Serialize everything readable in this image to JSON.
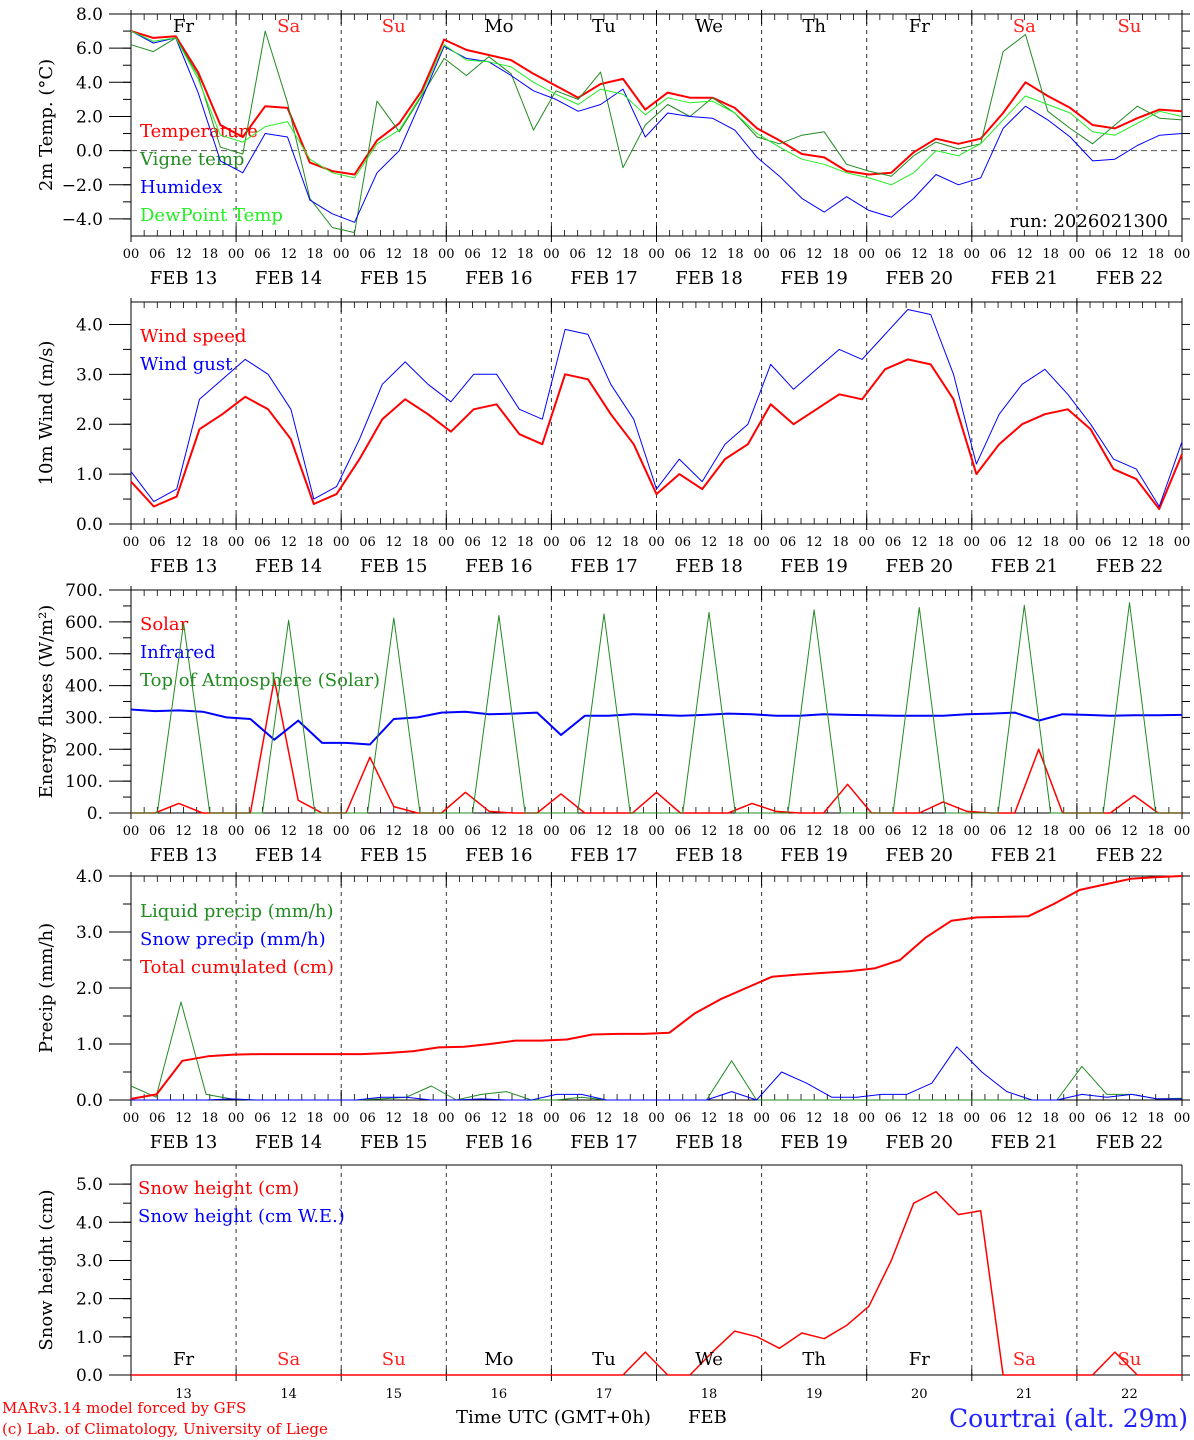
{
  "colors": {
    "red": "#ff0000",
    "darkgreen": "#228b22",
    "blue": "#0000ff",
    "lightgreen": "#22ee22",
    "black": "#000000",
    "weekend": "#ff2020"
  },
  "days": [
    {
      "abbr": "Fr",
      "weekend": false
    },
    {
      "abbr": "Sa",
      "weekend": true
    },
    {
      "abbr": "Su",
      "weekend": true
    },
    {
      "abbr": "Mo",
      "weekend": false
    },
    {
      "abbr": "Tu",
      "weekend": false
    },
    {
      "abbr": "We",
      "weekend": false
    },
    {
      "abbr": "Th",
      "weekend": false
    },
    {
      "abbr": "Fr",
      "weekend": false
    },
    {
      "abbr": "Sa",
      "weekend": true
    },
    {
      "abbr": "Su",
      "weekend": true
    }
  ],
  "date_labels": [
    "FEB 13",
    "FEB 14",
    "FEB 15",
    "FEB 16",
    "FEB 17",
    "FEB 18",
    "FEB 19",
    "FEB 20",
    "FEB 21",
    "FEB 22"
  ],
  "hour_labels": [
    "00",
    "06",
    "12",
    "18"
  ],
  "final_hour_label": "00",
  "bottom_day_numbers": [
    "13",
    "14",
    "15",
    "16",
    "17",
    "18",
    "19",
    "20",
    "21",
    "22"
  ],
  "footer": {
    "model": "MARv3.14 model forced by GFS",
    "credit": "(c) Lab. of Climatology, University of Liege",
    "time_axis": "Time UTC (GMT+0h)",
    "month": "FEB",
    "station": "Courtrai (alt. 29m)"
  },
  "chart_data": [
    {
      "type": "line",
      "id": "temp",
      "ylabel": "2m Temp. (°C)",
      "ylim": [
        -5,
        8
      ],
      "yticks": [
        -4,
        -2,
        0,
        2,
        4,
        6,
        8
      ],
      "ytick_labels": [
        "−4.0",
        "−2.0",
        "0.0",
        "2.0",
        "4.0",
        "6.0",
        "8.0"
      ],
      "zero_line": true,
      "annotation": "run: 2026021300",
      "show_days": true,
      "x_hours_step": 6,
      "series": [
        {
          "name": "Temperature",
          "color": "#ff0000",
          "width": 2,
          "values": [
            7.0,
            6.6,
            6.7,
            4.6,
            1.5,
            0.8,
            2.6,
            2.5,
            -0.7,
            -1.2,
            -1.4,
            0.6,
            1.6,
            3.5,
            6.5,
            5.9,
            5.6,
            5.3,
            4.5,
            3.8,
            3.1,
            3.9,
            4.2,
            2.4,
            3.4,
            3.1,
            3.1,
            2.5,
            1.3,
            0.6,
            -0.2,
            -0.4,
            -1.2,
            -1.4,
            -1.3,
            -0.1,
            0.7,
            0.4,
            0.7,
            2.2,
            4.0,
            3.2,
            2.5,
            1.5,
            1.3,
            1.9,
            2.4,
            2.3
          ]
        },
        {
          "name": "Vigne temp",
          "color": "#228b22",
          "width": 1,
          "values": [
            6.2,
            5.8,
            6.6,
            4.4,
            0.2,
            -0.2,
            7.0,
            2.8,
            -2.8,
            -4.5,
            -4.8,
            2.9,
            1.1,
            3.2,
            5.4,
            4.4,
            5.5,
            4.5,
            1.2,
            3.5,
            3.0,
            4.6,
            -1.0,
            1.5,
            2.7,
            2.0,
            3.1,
            2.2,
            0.8,
            0.4,
            0.9,
            1.1,
            -0.8,
            -1.2,
            -1.5,
            -0.3,
            0.5,
            0.1,
            0.4,
            5.8,
            6.8,
            2.3,
            1.3,
            0.4,
            1.5,
            2.6,
            1.9,
            1.8
          ]
        },
        {
          "name": "Humidex",
          "color": "#0000ff",
          "width": 1,
          "values": [
            7.0,
            6.3,
            6.6,
            3.4,
            -0.6,
            -1.3,
            1.0,
            0.8,
            -2.9,
            -3.7,
            -4.2,
            -1.3,
            0.0,
            3.0,
            6.1,
            5.4,
            5.2,
            4.4,
            3.5,
            3.0,
            2.3,
            2.7,
            3.6,
            0.8,
            2.2,
            2.0,
            1.9,
            1.2,
            -0.4,
            -1.5,
            -2.8,
            -3.6,
            -2.7,
            -3.5,
            -3.9,
            -2.8,
            -1.4,
            -2.0,
            -1.6,
            1.3,
            2.6,
            1.8,
            0.8,
            -0.6,
            -0.5,
            0.3,
            0.9,
            1.0
          ]
        },
        {
          "name": "DewPoint Temp",
          "color": "#22ee22",
          "width": 1,
          "values": [
            7.0,
            6.4,
            6.6,
            4.2,
            0.9,
            0.5,
            1.4,
            1.7,
            -0.5,
            -1.3,
            -1.6,
            0.4,
            1.2,
            3.3,
            6.2,
            5.3,
            5.2,
            4.9,
            4.0,
            3.3,
            2.7,
            3.6,
            3.3,
            2.1,
            3.1,
            2.8,
            2.9,
            2.2,
            1.0,
            0.2,
            -0.5,
            -0.8,
            -1.3,
            -1.6,
            -2.0,
            -1.3,
            0.0,
            -0.3,
            0.4,
            1.8,
            3.2,
            2.7,
            2.2,
            1.1,
            0.9,
            1.6,
            2.3,
            2.0
          ]
        }
      ]
    },
    {
      "type": "line",
      "id": "wind",
      "ylabel": "10m Wind (m/s)",
      "ylim": [
        0,
        4.45
      ],
      "yticks": [
        0,
        1,
        2,
        3,
        4
      ],
      "ytick_labels": [
        "0.0",
        "1.0",
        "2.0",
        "3.0",
        "4.0"
      ],
      "series": [
        {
          "name": "Wind speed",
          "color": "#ff0000",
          "width": 2,
          "values": [
            0.85,
            0.35,
            0.55,
            1.9,
            2.2,
            2.55,
            2.3,
            1.7,
            0.4,
            0.6,
            1.3,
            2.1,
            2.5,
            2.2,
            1.85,
            2.3,
            2.4,
            1.8,
            1.6,
            3.0,
            2.9,
            2.2,
            1.6,
            0.6,
            1.0,
            0.7,
            1.3,
            1.6,
            2.4,
            2.0,
            2.3,
            2.6,
            2.5,
            3.1,
            3.3,
            3.2,
            2.5,
            1.0,
            1.6,
            2.0,
            2.2,
            2.3,
            1.9,
            1.1,
            0.9,
            0.3,
            1.4
          ]
        },
        {
          "name": "Wind gust",
          "color": "#0000ff",
          "width": 1,
          "values": [
            1.05,
            0.45,
            0.7,
            2.5,
            2.9,
            3.3,
            3.0,
            2.3,
            0.5,
            0.75,
            1.7,
            2.8,
            3.25,
            2.8,
            2.45,
            3.0,
            3.0,
            2.3,
            2.1,
            3.9,
            3.8,
            2.8,
            2.1,
            0.7,
            1.3,
            0.85,
            1.6,
            2.0,
            3.2,
            2.7,
            3.1,
            3.5,
            3.3,
            3.8,
            4.3,
            4.2,
            3.0,
            1.2,
            2.2,
            2.8,
            3.1,
            2.6,
            2.0,
            1.3,
            1.1,
            0.35,
            1.65
          ]
        }
      ]
    },
    {
      "type": "line",
      "id": "energy",
      "ylabel": "Energy fluxes (W/m²)",
      "ylim": [
        0,
        700
      ],
      "yticks": [
        0,
        100,
        200,
        300,
        400,
        500,
        600,
        700
      ],
      "ytick_labels": [
        "0.",
        "100.",
        "200.",
        "300.",
        "400.",
        "500.",
        "600.",
        "700."
      ],
      "series": [
        {
          "name": "Solar",
          "color": "#ff0000",
          "width": 1.5,
          "values": [
            0,
            0,
            30,
            0,
            0,
            0,
            420,
            40,
            0,
            0,
            175,
            20,
            0,
            0,
            65,
            5,
            0,
            0,
            60,
            0,
            0,
            0,
            65,
            0,
            0,
            0,
            30,
            5,
            0,
            0,
            90,
            0,
            0,
            0,
            35,
            5,
            0,
            0,
            200,
            0,
            0,
            0,
            55,
            0,
            0
          ]
        },
        {
          "name": "Infrared",
          "color": "#0000ff",
          "width": 2,
          "values": [
            325,
            320,
            322,
            318,
            300,
            295,
            230,
            290,
            220,
            220,
            215,
            295,
            300,
            315,
            318,
            310,
            312,
            315,
            245,
            305,
            305,
            310,
            308,
            305,
            308,
            312,
            310,
            305,
            305,
            310,
            308,
            307,
            305,
            305,
            305,
            310,
            312,
            315,
            290,
            310,
            308,
            305,
            307,
            307,
            308
          ]
        },
        {
          "name": "Top of Atmosphere (Solar)",
          "color": "#228b22",
          "width": 1,
          "values": [
            0,
            0,
            595,
            0,
            0,
            0,
            605,
            0,
            0,
            0,
            612,
            0,
            0,
            0,
            620,
            0,
            0,
            0,
            625,
            0,
            0,
            0,
            630,
            0,
            0,
            0,
            638,
            0,
            0,
            0,
            645,
            0,
            0,
            0,
            652,
            0,
            0,
            0,
            660,
            0,
            0
          ]
        }
      ]
    },
    {
      "type": "line",
      "id": "precip",
      "ylabel": "Precip (mm/h)",
      "ylim": [
        0,
        4
      ],
      "yticks": [
        0,
        1,
        2,
        3,
        4
      ],
      "ytick_labels": [
        "0.0",
        "1.0",
        "2.0",
        "3.0",
        "4.0"
      ],
      "series": [
        {
          "name": "Liquid precip (mm/h)",
          "color": "#228b22",
          "width": 1,
          "values": [
            0.25,
            0.05,
            1.75,
            0.1,
            0.02,
            0.0,
            0.0,
            0.0,
            0.0,
            0.0,
            0.02,
            0.05,
            0.25,
            0.0,
            0.1,
            0.15,
            0.0,
            0.0,
            0.05,
            0.0,
            0.0,
            0.0,
            0.0,
            0.0,
            0.7,
            0.0,
            0.0,
            0.0,
            0.0,
            0.0,
            0.0,
            0.0,
            0.0,
            0.0,
            0.0,
            0.0,
            0.0,
            0.0,
            0.6,
            0.1,
            0.1,
            0.02,
            0.03
          ]
        },
        {
          "name": "Snow precip (mm/h)",
          "color": "#0000ff",
          "width": 1,
          "values": [
            0.0,
            0.0,
            0.0,
            0.0,
            0.02,
            0.0,
            0.0,
            0.0,
            0.0,
            0.0,
            0.05,
            0.05,
            0.0,
            0.0,
            0.02,
            0.0,
            0.0,
            0.1,
            0.1,
            0.0,
            0.0,
            0.0,
            0.0,
            0.0,
            0.15,
            0.0,
            0.5,
            0.3,
            0.05,
            0.05,
            0.1,
            0.1,
            0.3,
            0.95,
            0.5,
            0.15,
            0.0,
            0.0,
            0.1,
            0.05,
            0.1,
            0.02,
            0.02
          ]
        },
        {
          "name": "Total cumulated (cm)",
          "color": "#ff0000",
          "width": 2,
          "values": [
            0.02,
            0.1,
            0.7,
            0.78,
            0.81,
            0.82,
            0.82,
            0.82,
            0.82,
            0.82,
            0.84,
            0.87,
            0.94,
            0.95,
            1.0,
            1.06,
            1.06,
            1.08,
            1.17,
            1.18,
            1.18,
            1.2,
            1.55,
            1.8,
            2.0,
            2.2,
            2.24,
            2.27,
            2.3,
            2.35,
            2.5,
            2.9,
            3.2,
            3.26,
            3.27,
            3.28,
            3.5,
            3.75,
            3.85,
            3.95,
            3.98,
            4.0
          ]
        }
      ]
    },
    {
      "type": "line",
      "id": "snow",
      "ylabel": "Snow height (cm)",
      "ylim": [
        0,
        5.5
      ],
      "yticks": [
        0,
        1,
        2,
        3,
        4,
        5
      ],
      "ytick_labels": [
        "0.0",
        "1.0",
        "2.0",
        "3.0",
        "4.0",
        "5.0"
      ],
      "show_days_bottom": true,
      "series": [
        {
          "name": "Snow height (cm)",
          "color": "#ff0000",
          "width": 1.5,
          "values": [
            0,
            0,
            0,
            0,
            0,
            0,
            0,
            0,
            0,
            0,
            0,
            0,
            0,
            0,
            0,
            0,
            0,
            0,
            0,
            0,
            0,
            0,
            0,
            0.6,
            0,
            0,
            0.6,
            1.15,
            1.0,
            0.7,
            1.1,
            0.95,
            1.3,
            1.8,
            3.0,
            4.5,
            4.8,
            4.2,
            4.3,
            0,
            0,
            0,
            0,
            0,
            0.6,
            0,
            0,
            0
          ]
        },
        {
          "name": "Snow height (cm W.E.)",
          "color": "#0000ff",
          "width": 1,
          "values": []
        }
      ]
    }
  ]
}
